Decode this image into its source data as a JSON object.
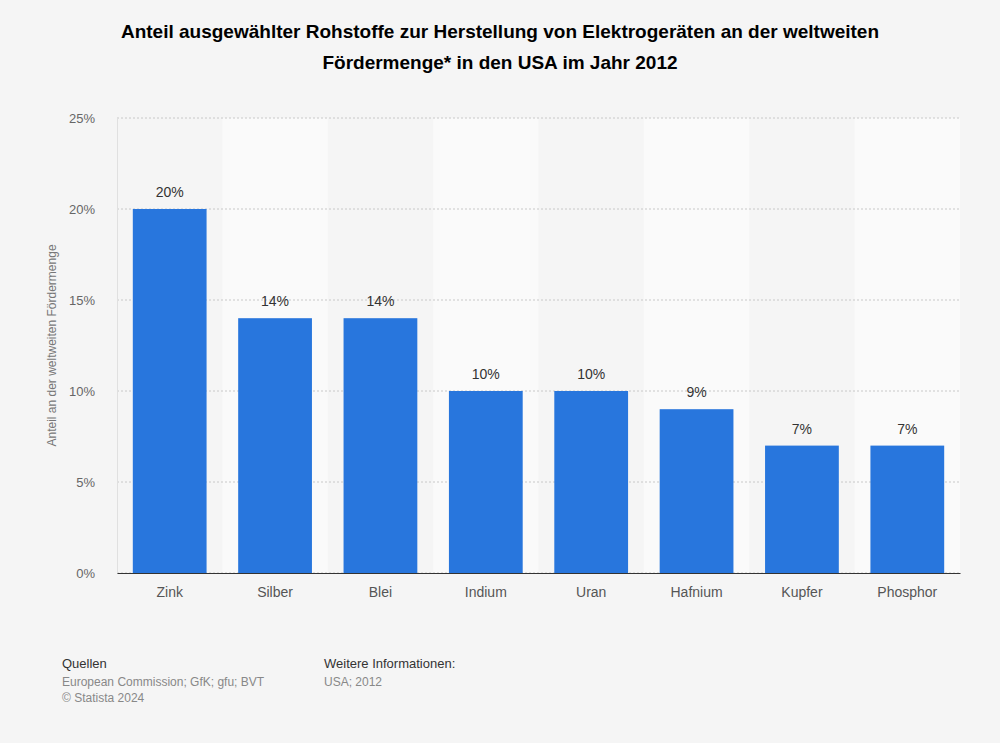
{
  "chart_data": {
    "type": "bar",
    "title": [
      "Anteil ausgewählter Rohstoffe zur Herstellung von Elektrogeräten an der weltweiten",
      "Fördermenge* in den USA im Jahr 2012"
    ],
    "ylabel": "Anteil an der weltweiten Fördermenge",
    "categories": [
      "Zink",
      "Silber",
      "Blei",
      "Indium",
      "Uran",
      "Hafnium",
      "Kupfer",
      "Phosphor"
    ],
    "values": [
      20,
      14,
      14,
      10,
      10,
      9,
      7,
      7
    ],
    "value_labels": [
      "20%",
      "14%",
      "14%",
      "10%",
      "10%",
      "9%",
      "7%",
      "7%"
    ],
    "color": "#2876dd",
    "ylim": [
      0,
      25
    ],
    "yticks": [
      {
        "value": 0,
        "label": "0%"
      },
      {
        "value": 5,
        "label": "5%"
      },
      {
        "value": 10,
        "label": "10%"
      },
      {
        "value": 15,
        "label": "15%"
      },
      {
        "value": 20,
        "label": "20%"
      },
      {
        "value": 25,
        "label": "25%"
      }
    ],
    "grid": true,
    "data_labels": true,
    "annotations": [
      "Quellen",
      "European Commission; GfK; gfu; BVT",
      "© Statista 2024",
      "Weitere Informationen:",
      "USA; 2012"
    ]
  }
}
